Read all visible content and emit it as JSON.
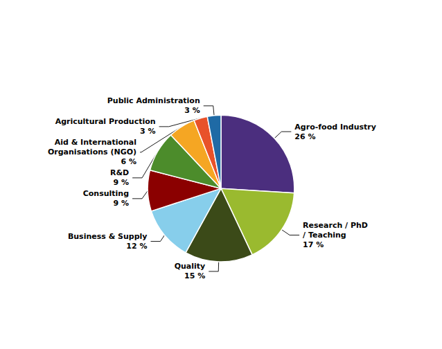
{
  "chart_data": {
    "type": "pie",
    "categories": [
      "Agro-food Industry",
      "Research / PhD\n/ Teaching",
      "Quality",
      "Business & Supply",
      "Consulting",
      "R&D",
      "Aid & International\nOrganisations (NGO)",
      "Agricultural Production",
      "Public Administration"
    ],
    "values": [
      26,
      17,
      15,
      12,
      9,
      9,
      6,
      3,
      3
    ],
    "value_labels": [
      "26 %",
      "17 %",
      "15 %",
      "12 %",
      "9 %",
      "9 %",
      "6 %",
      "3 %",
      "3 %"
    ],
    "colors": [
      "#4B2E7E",
      "#9ABA2F",
      "#3B4A18",
      "#87CEEB",
      "#8B0000",
      "#4C8C2B",
      "#F5A623",
      "#E8522A",
      "#1F6AA5"
    ]
  }
}
